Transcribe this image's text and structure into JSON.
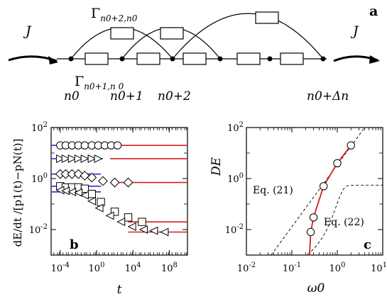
{
  "panel_a": {
    "label": "a",
    "current_left": "J",
    "current_right": "J",
    "gamma_top": "Γ",
    "gamma_top_sub": "n0+2,n0",
    "gamma_bottom": "Γ",
    "gamma_bottom_sub": "n0+1,n 0",
    "site_labels": [
      "n0",
      "n0+1",
      "n0+2",
      "n0+Δn"
    ]
  },
  "chart_data": [
    {
      "panel": "b",
      "type": "scatter",
      "ylabel": "dE/dt /[p1(t)−pN(t)]",
      "xlabel": "t",
      "x_scale": "log",
      "y_scale": "log",
      "xlim": [
        1e-05,
        10000000000
      ],
      "ylim": [
        0.001,
        100
      ],
      "x_tick_labels": [
        "10-4",
        "100",
        "104",
        "108"
      ],
      "y_tick_labels": [
        "102",
        "100",
        "10-2"
      ],
      "series": [
        {
          "marker": "circle",
          "x": [
            0.0001,
            0.0004,
            0.002,
            0.01,
            0.05,
            0.3,
            1.5,
            8,
            40,
            200
          ],
          "y": [
            20,
            20,
            20,
            20,
            20,
            20,
            20,
            20,
            20,
            20
          ],
          "blue_level": 20,
          "red_level": 20
        },
        {
          "marker": "triangle-right",
          "x": [
            0.0001,
            0.0004,
            0.002,
            0.01,
            0.05,
            0.3,
            1.5
          ],
          "y": [
            6,
            6,
            6,
            6,
            6,
            6,
            6
          ],
          "blue_level": 6,
          "red_level": 6
        },
        {
          "marker": "diamond",
          "x": [
            0.0001,
            0.0004,
            0.002,
            0.01,
            0.05,
            0.3,
            5,
            100,
            3000
          ],
          "y": [
            1.5,
            1.5,
            1.5,
            1.5,
            1.3,
            1.1,
            0.8,
            0.7,
            0.7
          ],
          "blue_level": 1.5,
          "red_level": 0.7
        },
        {
          "marker": "square",
          "x": [
            0.0001,
            0.0004,
            0.002,
            0.01,
            0.05,
            0.3,
            3,
            100,
            3000,
            100000
          ],
          "y": [
            0.5,
            0.45,
            0.45,
            0.45,
            0.4,
            0.25,
            0.12,
            0.05,
            0.03,
            0.02
          ],
          "blue_level": 0.5,
          "red_level": 0.02
        },
        {
          "marker": "triangle-left",
          "x": [
            0.0001,
            0.0004,
            0.002,
            0.01,
            0.05,
            0.3,
            2,
            30,
            500,
            8000,
            150000,
            2000000,
            30000000
          ],
          "y": [
            0.35,
            0.33,
            0.3,
            0.28,
            0.22,
            0.13,
            0.07,
            0.035,
            0.02,
            0.013,
            0.01,
            0.009,
            0.008
          ],
          "blue_level": 0.3,
          "red_level": 0.008
        }
      ],
      "label": "b"
    },
    {
      "panel": "c",
      "type": "line",
      "ylabel": "DE",
      "xlabel": "ω0",
      "x_scale": "log",
      "y_scale": "log",
      "xlim": [
        0.01,
        10
      ],
      "ylim": [
        0.001,
        100
      ],
      "x_tick_labels": [
        "10-2",
        "10-1",
        "100",
        "101"
      ],
      "y_tick_labels": [
        "102",
        "100",
        "10-2"
      ],
      "points": {
        "x": [
          0.26,
          0.3,
          0.5,
          1.0,
          2.0
        ],
        "y": [
          0.008,
          0.03,
          0.5,
          4,
          20
        ]
      },
      "annotations": [
        "Eq. (21)",
        "Eq. (22)"
      ],
      "label": "c"
    }
  ]
}
